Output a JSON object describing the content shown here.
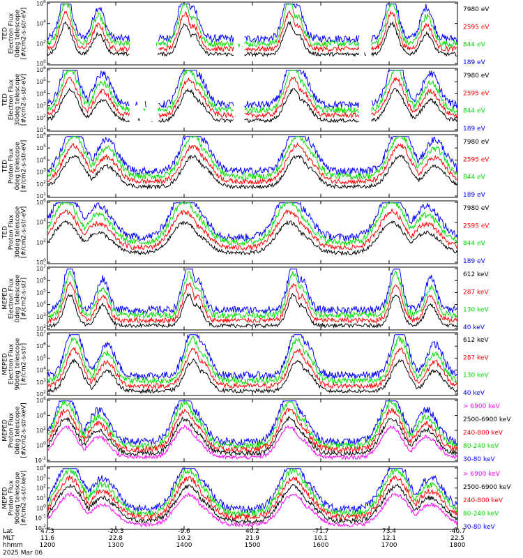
{
  "chart_data": {
    "type": "line",
    "panels": [
      {
        "ylabel": [
          "TED",
          "Electron Flux",
          "0deg telescope",
          "[#/cm2-s-str-eV]"
        ],
        "ytick_exp": [
          0,
          2,
          4,
          6
        ],
        "series": [
          {
            "name": "7980 eV",
            "color": "#000000"
          },
          {
            "name": "2595 eV",
            "color": "#ff0000"
          },
          {
            "name": "844 eV",
            "color": "#00dd00"
          },
          {
            "name": "189 eV",
            "color": "#0000ff"
          }
        ]
      },
      {
        "ylabel": [
          "TED",
          "Electron Flux",
          "30deg telescope",
          "[#/cm2-s-str-eV]"
        ],
        "ytick_exp": [
          1,
          2,
          3,
          4,
          5,
          6
        ],
        "series": [
          {
            "name": "7980 eV",
            "color": "#000000"
          },
          {
            "name": "2595 eV",
            "color": "#ff0000"
          },
          {
            "name": "844 eV",
            "color": "#00dd00"
          },
          {
            "name": "189 eV",
            "color": "#0000ff"
          }
        ]
      },
      {
        "ylabel": [
          "TED",
          "Proton Flux",
          "0deg telescope",
          "[#/cm2-s-str-eV]"
        ],
        "ytick_exp": [
          1,
          2,
          3,
          4,
          5,
          6
        ],
        "series": [
          {
            "name": "7980 eV",
            "color": "#000000"
          },
          {
            "name": "2595 eV",
            "color": "#ff0000"
          },
          {
            "name": "844 eV",
            "color": "#00dd00"
          },
          {
            "name": "189 eV",
            "color": "#0000ff"
          }
        ]
      },
      {
        "ylabel": [
          "TED",
          "Proton Flux",
          "30deg telescope",
          "[#/cm2-s-str-eV]"
        ],
        "ytick_exp": [
          0,
          2,
          4,
          6
        ],
        "series": [
          {
            "name": "7980 eV",
            "color": "#000000"
          },
          {
            "name": "2595 eV",
            "color": "#ff0000"
          },
          {
            "name": "844 eV",
            "color": "#00dd00"
          },
          {
            "name": "189 eV",
            "color": "#0000ff"
          }
        ]
      },
      {
        "ylabel": [
          "MEPED",
          "Electron Flux",
          "0deg telescope",
          "[#/cm2-s-str]"
        ],
        "ytick_exp": [
          2,
          3,
          4,
          5,
          6,
          7
        ],
        "series": [
          {
            "name": "612 keV",
            "color": "#000000"
          },
          {
            "name": "287 keV",
            "color": "#ff0000"
          },
          {
            "name": "130 keV",
            "color": "#00dd00"
          },
          {
            "name": "40 keV",
            "color": "#0000ff"
          }
        ]
      },
      {
        "ylabel": [
          "MEPED",
          "Electron Flux",
          "90deg telescope",
          "[#/cm2-s-str]"
        ],
        "ytick_exp": [
          2,
          3,
          4,
          5,
          6,
          7
        ],
        "series": [
          {
            "name": "612 keV",
            "color": "#000000"
          },
          {
            "name": "287 keV",
            "color": "#ff0000"
          },
          {
            "name": "130 keV",
            "color": "#00dd00"
          },
          {
            "name": "40 keV",
            "color": "#0000ff"
          }
        ]
      },
      {
        "ylabel": [
          "MEPED",
          "Proton Flux",
          "0deg telescope",
          "[#/cm2-s-str-keV]"
        ],
        "ytick_exp": [
          -2,
          0,
          2,
          4,
          6
        ],
        "series": [
          {
            "name": "> 6900 keV",
            "color": "#ff00ff"
          },
          {
            "name": "2500-6900 keV",
            "color": "#000000"
          },
          {
            "name": "240-800 keV",
            "color": "#ff0000"
          },
          {
            "name": "80-240 keV",
            "color": "#00dd00"
          },
          {
            "name": "30-80 keV",
            "color": "#0000ff"
          }
        ]
      },
      {
        "ylabel": [
          "MEPED",
          "Proton Flux",
          "90deg telescope",
          "[#/cm2-s-str-keV]"
        ],
        "ytick_exp": [
          -2,
          -1,
          0,
          1,
          2,
          3,
          4
        ],
        "series": [
          {
            "name": "> 6900 keV",
            "color": "#ff00ff"
          },
          {
            "name": "2500-6900 keV",
            "color": "#000000"
          },
          {
            "name": "240-800 keV",
            "color": "#ff0000"
          },
          {
            "name": "80-240 keV",
            "color": "#00dd00"
          },
          {
            "name": "30-80 keV",
            "color": "#0000ff"
          }
        ]
      }
    ],
    "x_axis": {
      "rows": [
        {
          "label": "Lat",
          "values": [
            "47.3",
            "-20.3",
            "-9.6",
            "40.2",
            "-71.7",
            "73.4",
            "-40.7"
          ]
        },
        {
          "label": "MLT",
          "values": [
            "11.6",
            "22.8",
            "10.2",
            "21.9",
            "10.1",
            "12.1",
            "22.5"
          ]
        },
        {
          "label": "hhmm",
          "values": [
            "1200",
            "1300",
            "1400",
            "1500",
            "1600",
            "1700",
            "1800"
          ]
        }
      ],
      "date": "2025 Mar 06"
    },
    "grid": false,
    "legend_placement": "right"
  }
}
